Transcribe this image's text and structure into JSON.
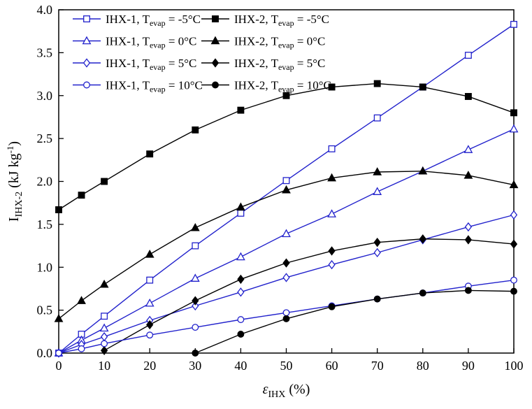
{
  "chart_data": {
    "type": "line",
    "title": "",
    "xlabel": "εIHX (%)",
    "ylabel": "IIHX-2 (kJ kg-1)",
    "xlabel_parts": {
      "pre": "ε",
      "sub": "IHX",
      "post": " (%)"
    },
    "ylabel_parts": {
      "pre": "I",
      "sub": "IHX-2",
      "mid": " (kJ kg",
      "sup": "-1",
      "end": ")"
    },
    "xlim": [
      0,
      100
    ],
    "ylim": [
      0,
      4.0
    ],
    "xticks": [
      0,
      10,
      20,
      30,
      40,
      50,
      60,
      70,
      80,
      90,
      100
    ],
    "xtick_labels": [
      "0",
      "10",
      "20",
      "30",
      "40",
      "50",
      "60",
      "70",
      "80",
      "90",
      "100"
    ],
    "yticks": [
      0,
      0.5,
      1.0,
      1.5,
      2.0,
      2.5,
      3.0,
      3.5,
      4.0
    ],
    "ytick_labels": [
      "0.0",
      "0.5",
      "1.0",
      "1.5",
      "2.0",
      "2.5",
      "3.0",
      "3.5",
      "4.0"
    ],
    "grid": false,
    "legend_position": "top-left-inside",
    "colors": {
      "ihx1": "#2222cc",
      "ihx2": "#000000"
    },
    "series": [
      {
        "name": "IHX-1, Tevap = -5°C",
        "label_pre": "IHX-1, T",
        "label_sub": "evap",
        "label_post": " = -5°C",
        "color": "#2222cc",
        "marker": "square",
        "filled": false,
        "x": [
          0,
          5,
          10,
          20,
          30,
          40,
          50,
          60,
          70,
          80,
          90,
          100
        ],
        "y": [
          0.0,
          0.22,
          0.43,
          0.85,
          1.25,
          1.63,
          2.01,
          2.38,
          2.74,
          3.1,
          3.47,
          3.83
        ]
      },
      {
        "name": "IHX-2, Tevap = -5°C",
        "label_pre": "IHX-2, T",
        "label_sub": "evap",
        "label_post": " = -5°C",
        "color": "#000000",
        "marker": "square",
        "filled": true,
        "x": [
          0,
          5,
          10,
          20,
          30,
          40,
          50,
          60,
          70,
          80,
          90,
          100
        ],
        "y": [
          1.67,
          1.84,
          2.0,
          2.32,
          2.6,
          2.83,
          3.0,
          3.1,
          3.14,
          3.1,
          2.99,
          2.8
        ]
      },
      {
        "name": "IHX-1, Tevap = 0°C",
        "label_pre": "IHX-1, T",
        "label_sub": "evap",
        "label_post": " = 0°C",
        "color": "#2222cc",
        "marker": "triangle",
        "filled": false,
        "x": [
          0,
          5,
          10,
          20,
          30,
          40,
          50,
          60,
          70,
          80,
          90,
          100
        ],
        "y": [
          0.0,
          0.15,
          0.29,
          0.58,
          0.87,
          1.12,
          1.39,
          1.62,
          1.88,
          2.12,
          2.37,
          2.61
        ]
      },
      {
        "name": "IHX-2, Tevap = 0°C",
        "label_pre": "IHX-2, T",
        "label_sub": "evap",
        "label_post": " = 0°C",
        "color": "#000000",
        "marker": "triangle",
        "filled": true,
        "x": [
          0,
          5,
          10,
          20,
          30,
          40,
          50,
          60,
          70,
          80,
          90,
          100
        ],
        "y": [
          0.4,
          0.61,
          0.8,
          1.15,
          1.46,
          1.7,
          1.9,
          2.04,
          2.11,
          2.12,
          2.07,
          1.96
        ]
      },
      {
        "name": "IHX-1, Tevap = 5°C",
        "label_pre": "IHX-1, T",
        "label_sub": "evap",
        "label_post": " = 5°C",
        "color": "#2222cc",
        "marker": "diamond",
        "filled": false,
        "x": [
          0,
          5,
          10,
          20,
          30,
          40,
          50,
          60,
          70,
          80,
          90,
          100
        ],
        "y": [
          0.0,
          0.1,
          0.19,
          0.38,
          0.55,
          0.71,
          0.88,
          1.03,
          1.17,
          1.32,
          1.47,
          1.61
        ]
      },
      {
        "name": "IHX-2, Tevap = 5°C",
        "label_pre": "IHX-2, T",
        "label_sub": "evap",
        "label_post": " = 5°C",
        "color": "#000000",
        "marker": "diamond",
        "filled": true,
        "x": [
          10,
          20,
          30,
          40,
          50,
          60,
          70,
          80,
          90,
          100
        ],
        "y": [
          0.03,
          0.33,
          0.61,
          0.86,
          1.05,
          1.19,
          1.29,
          1.33,
          1.32,
          1.27
        ]
      },
      {
        "name": "IHX-1, Tevap = 10°C",
        "label_pre": "IHX-1, T",
        "label_sub": "evap",
        "label_post": " = 10°C",
        "color": "#2222cc",
        "marker": "circle",
        "filled": false,
        "x": [
          0,
          5,
          10,
          20,
          30,
          40,
          50,
          60,
          70,
          80,
          90,
          100
        ],
        "y": [
          0.0,
          0.05,
          0.11,
          0.21,
          0.3,
          0.39,
          0.47,
          0.55,
          0.63,
          0.7,
          0.78,
          0.85
        ]
      },
      {
        "name": "IHX-2, Tevap = 10°C",
        "label_pre": "IHX-2, T",
        "label_sub": "evap",
        "label_post": " = 10°C",
        "color": "#000000",
        "marker": "circle",
        "filled": true,
        "x": [
          30,
          40,
          50,
          60,
          70,
          80,
          90,
          100
        ],
        "y": [
          0.0,
          0.22,
          0.4,
          0.54,
          0.63,
          0.7,
          0.73,
          0.72
        ]
      }
    ]
  }
}
